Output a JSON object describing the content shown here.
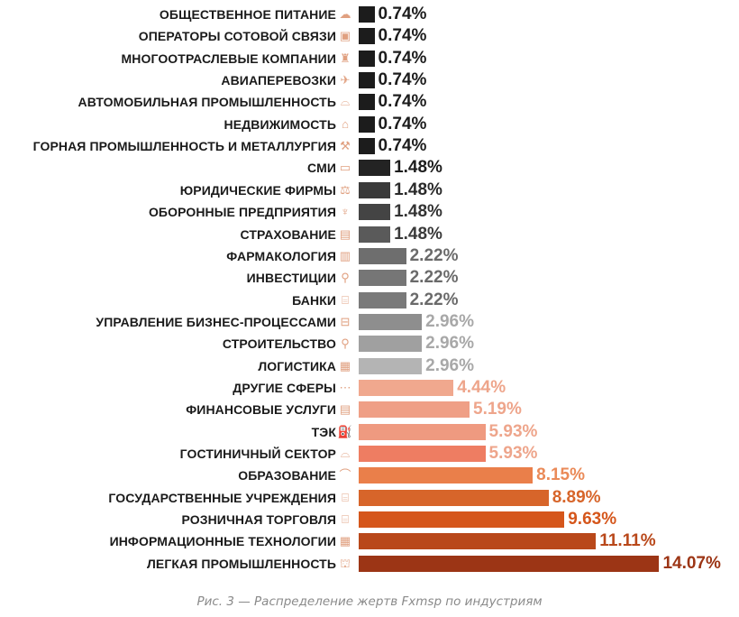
{
  "chart_data": {
    "type": "bar",
    "orientation": "horizontal",
    "title": "",
    "caption": "Рис. 3 — Распределение жертв Fxmsp по индустриям",
    "xlabel": "",
    "ylabel": "",
    "unit": "%",
    "grid": false,
    "legend": null,
    "categories": [
      "ОБЩЕСТВЕННОЕ ПИТАНИЕ",
      "ОПЕРАТОРЫ СОТОВОЙ СВЯЗИ",
      "МНОГООТРАСЛЕВЫЕ КОМПАНИИ",
      "АВИАПЕРЕВОЗКИ",
      "АВТОМОБИЛЬНАЯ ПРОМЫШЛЕННОСТЬ",
      "НЕДВИЖИМОСТЬ",
      "ГОРНАЯ ПРОМЫШЛЕННОСТЬ И МЕТАЛЛУРГИЯ",
      "СМИ",
      "ЮРИДИЧЕСКИЕ ФИРМЫ",
      "ОБОРОННЫЕ ПРЕДПРИЯТИЯ",
      "СТРАХОВАНИЕ",
      "ФАРМАКОЛОГИЯ",
      "ИНВЕСТИЦИИ",
      "БАНКИ",
      "УПРАВЛЕНИЕ БИЗНЕС-ПРОЦЕССАМИ",
      "СТРОИТЕЛЬСТВО",
      "ЛОГИСТИКА",
      "ДРУГИЕ СФЕРЫ",
      "ФИНАНСОВЫЕ УСЛУГИ",
      "ТЭК",
      "ГОСТИНИЧНЫЙ СЕКТОР",
      "ОБРАЗОВАНИЕ",
      "ГОСУДАРСТВЕННЫЕ УЧРЕЖДЕНИЯ",
      "РОЗНИЧНАЯ ТОРГОВЛЯ",
      "ИНФОРМАЦИОННЫЕ ТЕХНОЛОГИИ",
      "ЛЕГКАЯ ПРОМЫШЛЕННОСТЬ"
    ],
    "values": [
      0.74,
      0.74,
      0.74,
      0.74,
      0.74,
      0.74,
      0.74,
      1.48,
      1.48,
      1.48,
      1.48,
      2.22,
      2.22,
      2.22,
      2.96,
      2.96,
      2.96,
      4.44,
      5.19,
      5.93,
      5.93,
      8.15,
      8.89,
      9.63,
      11.11,
      14.07
    ],
    "value_labels": [
      "0.74%",
      "0.74%",
      "0.74%",
      "0.74%",
      "0.74%",
      "0.74%",
      "0.74%",
      "1.48%",
      "1.48%",
      "1.48%",
      "1.48%",
      "2.22%",
      "2.22%",
      "2.22%",
      "2.96%",
      "2.96%",
      "2.96%",
      "4.44%",
      "5.19%",
      "5.93%",
      "5.93%",
      "8.15%",
      "8.89%",
      "9.63%",
      "11.11%",
      "14.07%"
    ],
    "bar_colors": [
      "#1c1c1c",
      "#1c1c1c",
      "#1c1c1c",
      "#1c1c1c",
      "#1c1c1c",
      "#1c1c1c",
      "#1c1c1c",
      "#232323",
      "#3a3a3a",
      "#444444",
      "#5a5a5a",
      "#6e6e6e",
      "#767676",
      "#7a7a7a",
      "#8e8e8e",
      "#a0a0a0",
      "#b4b4b4",
      "#f0a88e",
      "#ef9f86",
      "#ef9a80",
      "#ee7d62",
      "#ea7f4a",
      "#d7652a",
      "#d5561b",
      "#b9481a",
      "#9c3515"
    ],
    "label_colors": [
      "#1c1c1c",
      "#1c1c1c",
      "#1c1c1c",
      "#1c1c1c",
      "#1c1c1c",
      "#1c1c1c",
      "#1c1c1c",
      "#1c1c1c",
      "#2a2a2a",
      "#333333",
      "#3a3a3a",
      "#6a6a6a",
      "#6a6a6a",
      "#6a6a6a",
      "#a8a8a8",
      "#a8a8a8",
      "#a8a8a8",
      "#eea58b",
      "#eea58b",
      "#eea58b",
      "#eea58b",
      "#ea8a58",
      "#d7652a",
      "#d5561b",
      "#b9481a",
      "#9c3515"
    ],
    "icons": [
      "chef-hat-icon",
      "phone-device-icon",
      "bottle-icon",
      "airplane-icon",
      "car-icon",
      "house-icon",
      "mining-icon",
      "tv-screen-icon",
      "scales-icon",
      "trophy-icon",
      "insurance-doc-icon",
      "pharma-chart-icon",
      "investor-icon",
      "bank-icon",
      "briefcase-icon",
      "crane-icon",
      "clipboard-icon",
      "ellipsis-bubble-icon",
      "money-icon",
      "oil-pump-icon",
      "hotel-bell-icon",
      "graduation-cap-icon",
      "government-building-icon",
      "storefront-icon",
      "server-rack-icon",
      "factory-icon"
    ],
    "icon_glyphs": [
      "☁",
      "▣",
      "♜",
      "✈",
      "⌓",
      "⌂",
      "⚒",
      "▭",
      "⚖",
      "♆",
      "▤",
      "▥",
      "⚲",
      "⌸",
      "⊟",
      "⚲",
      "▦",
      "⋯",
      "▤",
      "⛽",
      "⌓",
      "⌒",
      "⌸",
      "⌸",
      "▦",
      "⛫"
    ],
    "xlim": [
      0,
      14.07
    ]
  },
  "figure": {
    "caption": "Рис. 3 — Распределение жертв Fxmsp по индустриям"
  }
}
